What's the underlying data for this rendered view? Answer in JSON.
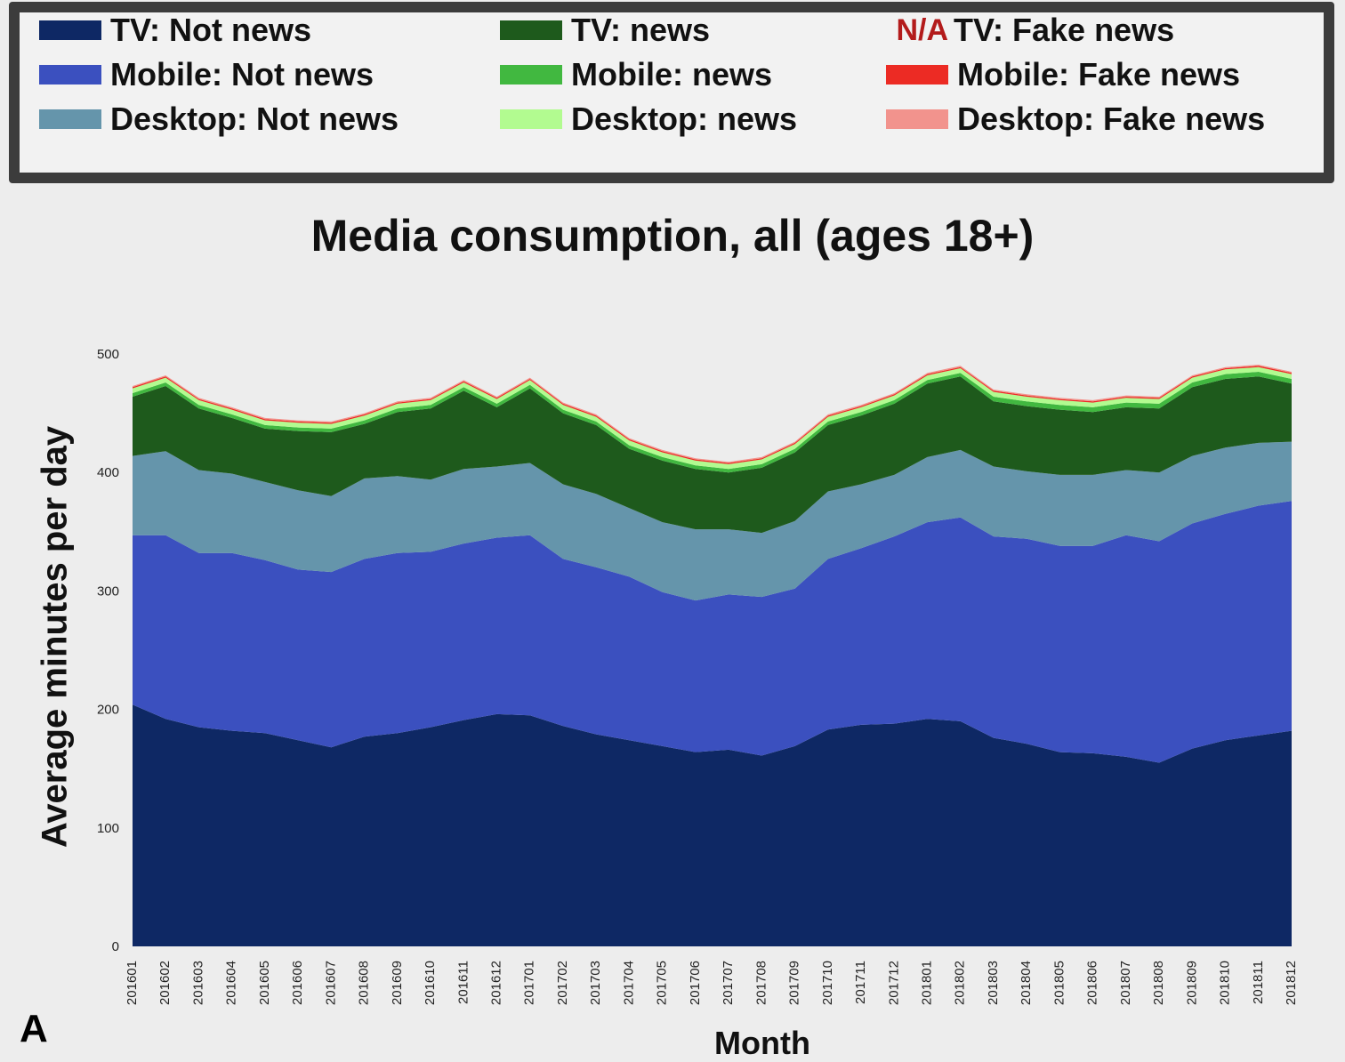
{
  "panel_letter": "A",
  "legend": {
    "items": [
      {
        "label": "TV: Not news",
        "color": "#0e2864"
      },
      {
        "label": "Mobile: Not news",
        "color": "#3b50bf"
      },
      {
        "label": "Desktop: Not news",
        "color": "#6595ab"
      },
      {
        "label": "TV: news",
        "color": "#1e5a1c"
      },
      {
        "label": "Mobile: news",
        "color": "#41b840"
      },
      {
        "label": "Desktop: news",
        "color": "#b2fb90"
      },
      {
        "label": "TV: Fake news",
        "color": "",
        "na_text": "N/A"
      },
      {
        "label": "Mobile: Fake news",
        "color": "#ec2b24"
      },
      {
        "label": "Desktop: Fake news",
        "color": "#f2938d"
      }
    ]
  },
  "chart_data": {
    "type": "area",
    "stacked": true,
    "title": "Media consumption, all (ages 18+)",
    "xlabel": "Month",
    "ylabel": "Average minutes per day",
    "ylim": [
      0,
      500
    ],
    "yticks": [
      "0",
      "100",
      "200",
      "300",
      "400",
      "500"
    ],
    "categories": [
      "201601",
      "201602",
      "201603",
      "201604",
      "201605",
      "201606",
      "201607",
      "201608",
      "201609",
      "201610",
      "201611",
      "201612",
      "201701",
      "201702",
      "201703",
      "201704",
      "201705",
      "201706",
      "201707",
      "201708",
      "201709",
      "201710",
      "201711",
      "201712",
      "201801",
      "201802",
      "201803",
      "201804",
      "201805",
      "201806",
      "201807",
      "201808",
      "201809",
      "201810",
      "201811",
      "201812"
    ],
    "series": [
      {
        "name": "TV: Not news",
        "color": "#0e2864",
        "values": [
          204,
          192,
          185,
          182,
          180,
          174,
          168,
          177,
          180,
          185,
          191,
          196,
          195,
          186,
          179,
          174,
          169,
          164,
          166,
          161,
          169,
          183,
          187,
          188,
          192,
          190,
          176,
          171,
          164,
          163,
          160,
          155,
          167,
          174,
          178,
          182
        ]
      },
      {
        "name": "Mobile: Not news",
        "color": "#3b50bf",
        "values": [
          143,
          155,
          147,
          150,
          146,
          144,
          148,
          150,
          152,
          148,
          149,
          149,
          152,
          141,
          141,
          138,
          130,
          128,
          131,
          134,
          133,
          144,
          149,
          158,
          166,
          172,
          170,
          173,
          174,
          175,
          187,
          187,
          190,
          191,
          194,
          194
        ]
      },
      {
        "name": "Desktop: Not news",
        "color": "#6595ab",
        "values": [
          67,
          71,
          70,
          67,
          66,
          67,
          64,
          68,
          65,
          61,
          63,
          60,
          61,
          63,
          62,
          58,
          59,
          60,
          55,
          54,
          57,
          57,
          54,
          52,
          55,
          57,
          59,
          57,
          60,
          60,
          55,
          58,
          57,
          56,
          53,
          50
        ]
      },
      {
        "name": "TV: news",
        "color": "#1e5a1c",
        "values": [
          50,
          55,
          52,
          47,
          45,
          50,
          54,
          46,
          54,
          60,
          66,
          50,
          63,
          60,
          58,
          50,
          52,
          51,
          48,
          55,
          58,
          56,
          58,
          60,
          62,
          62,
          55,
          55,
          55,
          53,
          53,
          54,
          58,
          58,
          56,
          49
        ]
      },
      {
        "name": "Mobile: news",
        "color": "#41b840",
        "values": [
          3,
          3,
          3,
          3,
          3,
          3,
          3,
          3,
          3,
          3,
          3,
          3,
          3,
          3,
          3,
          3,
          3,
          3,
          3,
          3,
          3,
          3,
          3,
          3,
          3,
          3,
          4,
          4,
          4,
          4,
          4,
          4,
          4,
          4,
          4,
          4
        ]
      },
      {
        "name": "Desktop: news",
        "color": "#b2fb90",
        "values": [
          4,
          4,
          4,
          4,
          4,
          4,
          4,
          4,
          4,
          4,
          4,
          4,
          4,
          4,
          4,
          4,
          4,
          4,
          4,
          4,
          4,
          4,
          4,
          4,
          4,
          4,
          4,
          4,
          4,
          4,
          4,
          4,
          4,
          4,
          4,
          4
        ]
      },
      {
        "name": "Mobile: Fake news",
        "color": "#ec2b24",
        "values": [
          1,
          1,
          1,
          1,
          1,
          1,
          1,
          1,
          1,
          1,
          1,
          1,
          1,
          1,
          1,
          1,
          1,
          1,
          1,
          1,
          1,
          1,
          1,
          1,
          1,
          1,
          1,
          1,
          1,
          1,
          1,
          1,
          1,
          1,
          1,
          1
        ]
      },
      {
        "name": "Desktop: Fake news",
        "color": "#f2938d",
        "values": [
          1,
          1,
          1,
          1,
          1,
          1,
          1,
          1,
          1,
          1,
          1,
          1,
          1,
          1,
          1,
          1,
          1,
          1,
          1,
          1,
          1,
          1,
          1,
          1,
          1,
          1,
          1,
          1,
          1,
          1,
          1,
          1,
          1,
          1,
          1,
          1
        ]
      }
    ],
    "legend_position": "top",
    "grid": false
  }
}
